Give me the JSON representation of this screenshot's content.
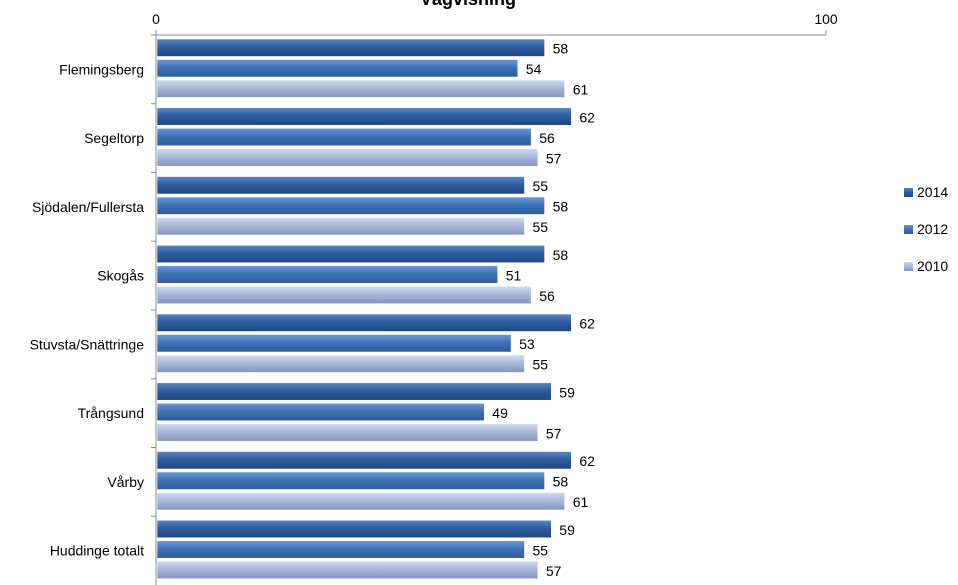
{
  "chart_data": {
    "type": "bar",
    "orientation": "horizontal",
    "title": "Vägvisning",
    "categories": [
      "Flemingsberg",
      "Segeltorp",
      "Sjödalen/Fullersta",
      "Skogås",
      "Stuvsta/Snättringe",
      "Trångsund",
      "Vårby",
      "Huddinge totalt"
    ],
    "series": [
      {
        "name": "2014",
        "color": "#2f5e9e",
        "values": [
          58,
          62,
          55,
          58,
          62,
          59,
          62,
          59
        ]
      },
      {
        "name": "2012",
        "color": "#3f74b8",
        "values": [
          54,
          56,
          58,
          51,
          53,
          49,
          58,
          55
        ]
      },
      {
        "name": "2010",
        "color": "#a9b8d9",
        "values": [
          61,
          57,
          55,
          56,
          55,
          57,
          61,
          57
        ]
      }
    ],
    "xlim": [
      0,
      100
    ],
    "x_ticks": [
      "0",
      "100"
    ],
    "x_axis_position": "top",
    "grid": false,
    "legend_position": "right",
    "data_labels": true
  }
}
